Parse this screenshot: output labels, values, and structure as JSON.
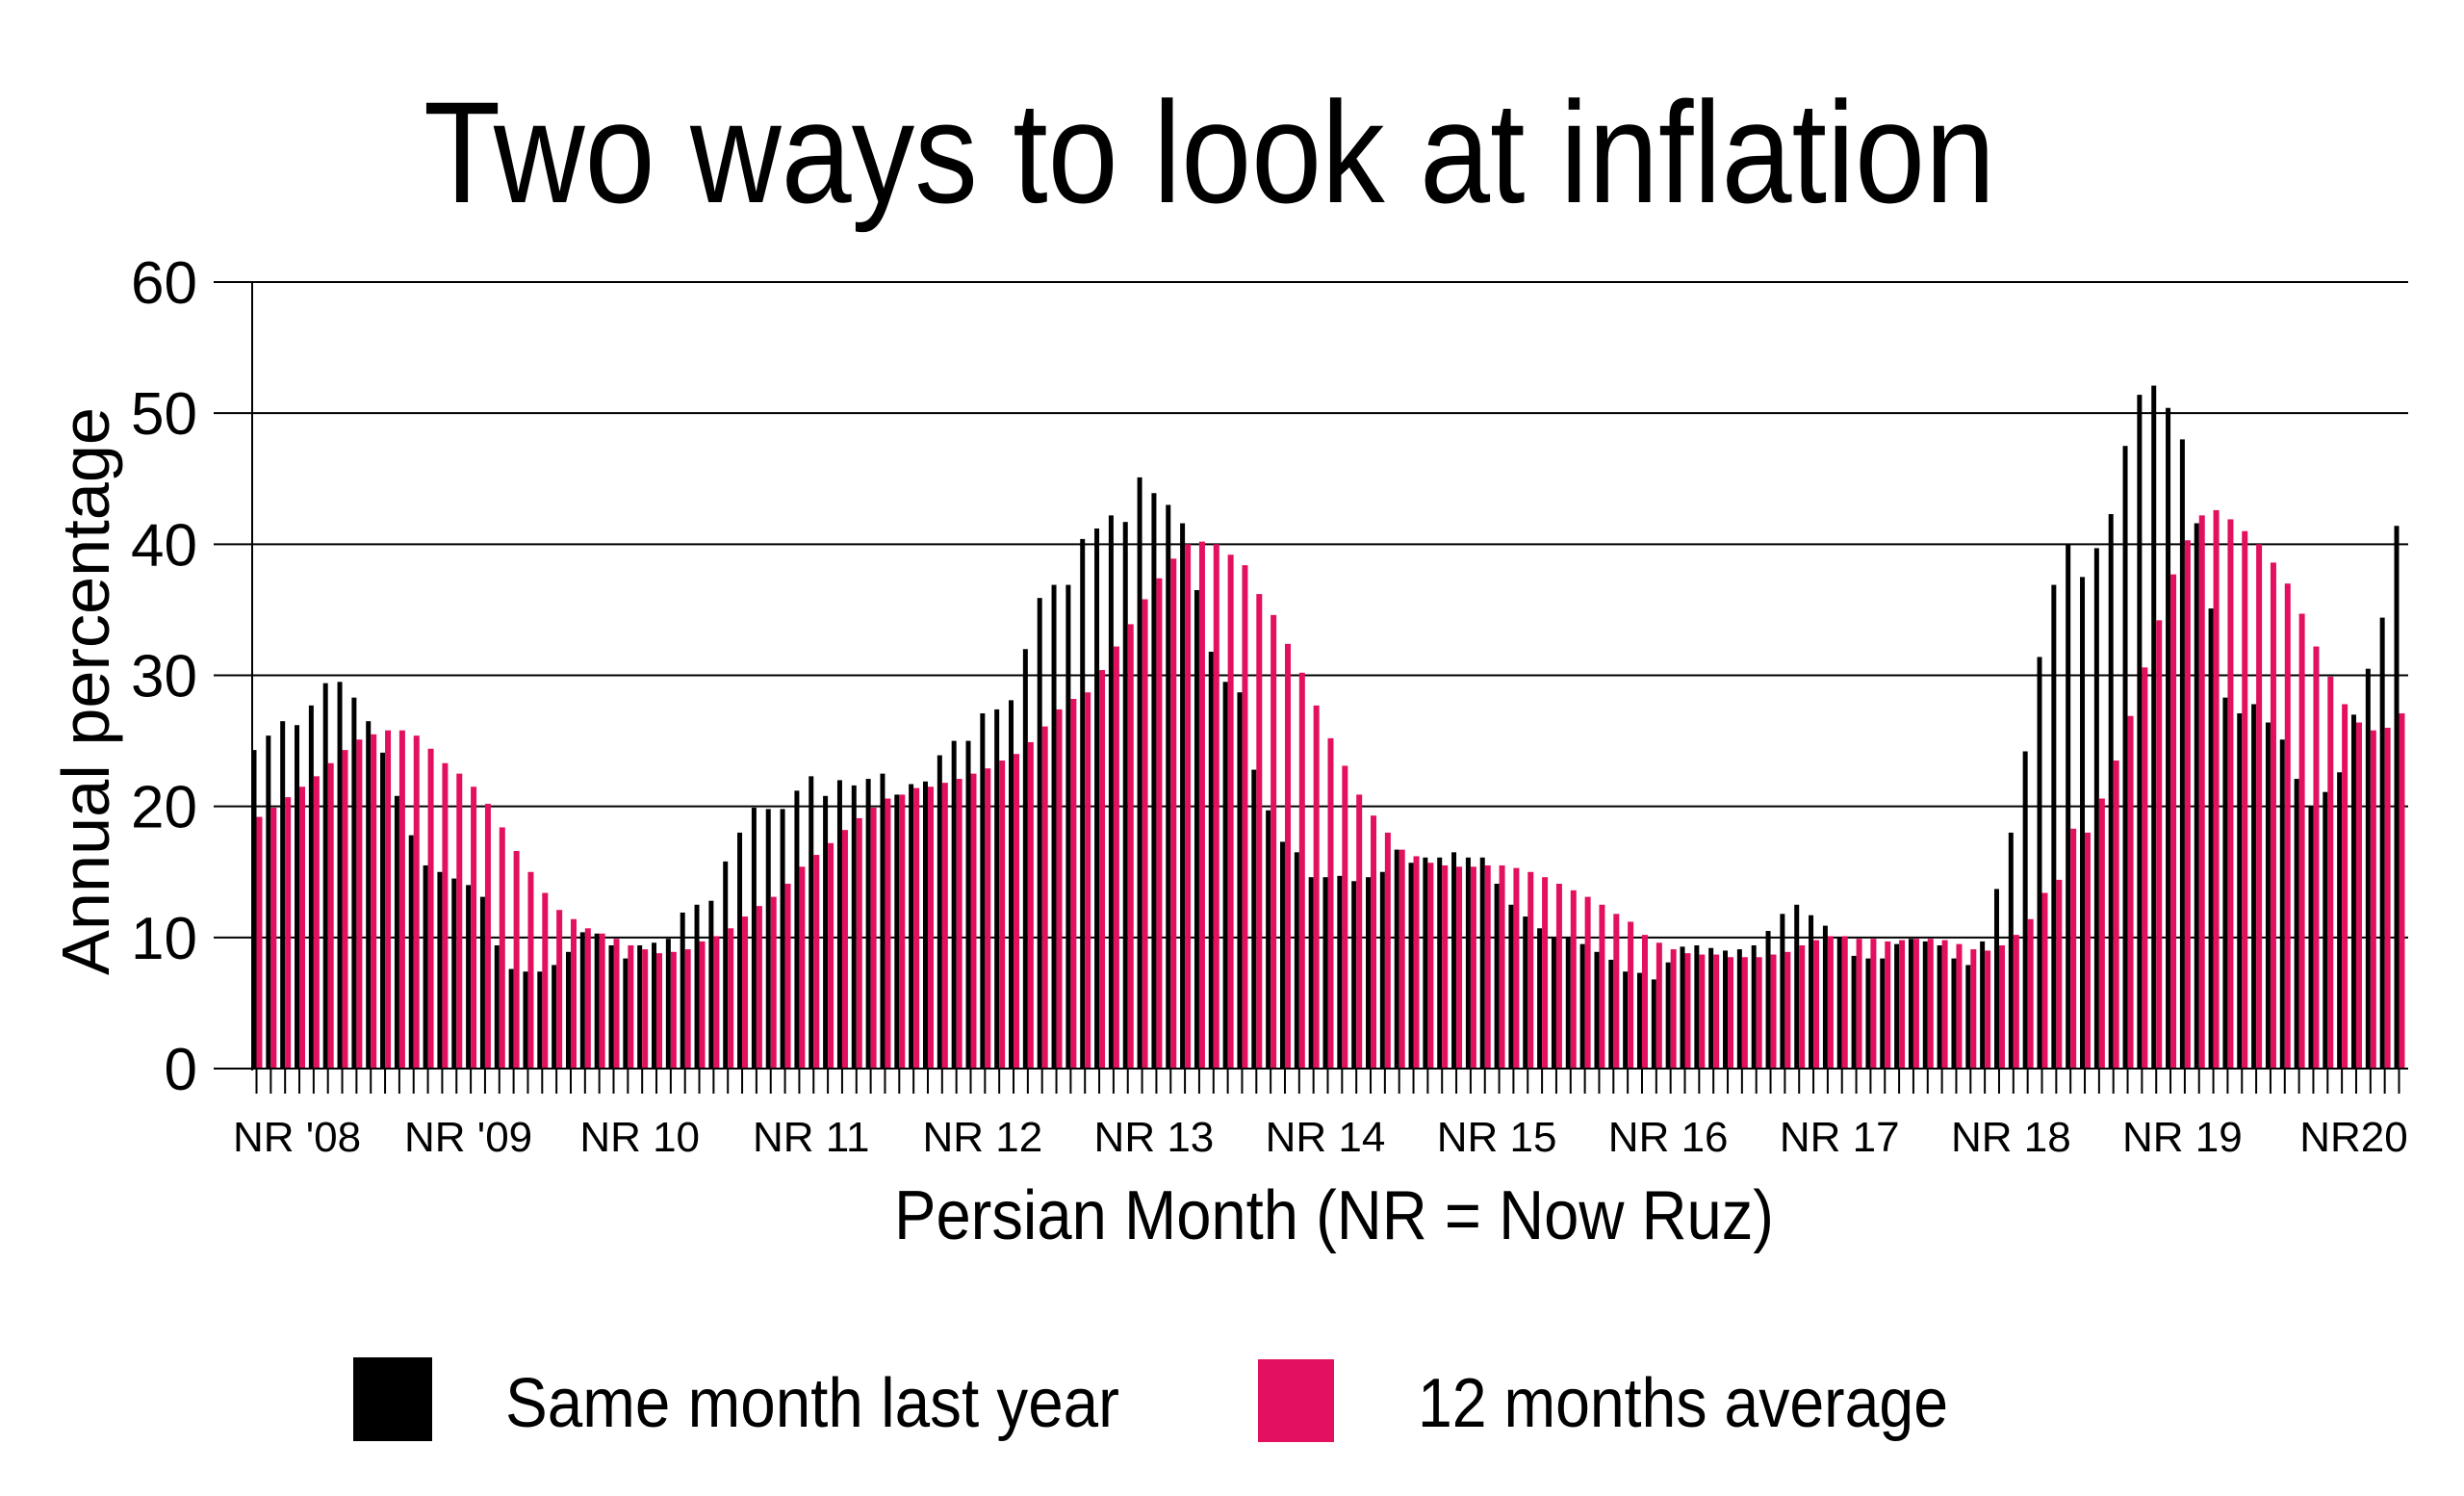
{
  "chart_data": {
    "type": "bar",
    "title": "Two ways to look at inflation",
    "xlabel": "Persian Month (NR = Now Ruz)",
    "ylabel": "Annual percentage",
    "ylim": [
      0,
      60
    ],
    "yticks": [
      "0",
      "10",
      "20",
      "30",
      "40",
      "50",
      "60"
    ],
    "grid": "horizontal",
    "legend_placement": "bottom",
    "x_tick_labels": [
      {
        "month": 1,
        "label": "NR '08"
      },
      {
        "month": 13,
        "label": "NR '09"
      },
      {
        "month": 25,
        "label": "NR 10"
      },
      {
        "month": 37,
        "label": "NR 11"
      },
      {
        "month": 49,
        "label": "NR 12"
      },
      {
        "month": 61,
        "label": "NR 13"
      },
      {
        "month": 73,
        "label": "NR 14"
      },
      {
        "month": 85,
        "label": "NR 15"
      },
      {
        "month": 97,
        "label": "NR 16"
      },
      {
        "month": 109,
        "label": "NR 17"
      },
      {
        "month": 121,
        "label": "NR 18"
      },
      {
        "month": 133,
        "label": "NR 19"
      },
      {
        "month": 145,
        "label": "NR20"
      }
    ],
    "series": [
      {
        "name": "Same month last year",
        "color": "#000000",
        "values": [
          24.3,
          25.4,
          26.5,
          26.2,
          27.7,
          29.4,
          29.5,
          28.3,
          26.5,
          24.1,
          20.8,
          17.8,
          15.5,
          15.0,
          14.5,
          14.0,
          13.1,
          9.4,
          7.6,
          7.4,
          7.4,
          7.9,
          8.9,
          10.4,
          10.3,
          9.4,
          8.4,
          9.4,
          9.6,
          9.9,
          11.9,
          12.5,
          12.8,
          15.8,
          18.0,
          19.9,
          19.8,
          19.8,
          21.2,
          22.3,
          20.8,
          22.0,
          21.6,
          22.1,
          22.5,
          20.9,
          21.7,
          21.9,
          23.9,
          25.0,
          25.0,
          27.1,
          27.4,
          28.1,
          32.0,
          35.9,
          36.9,
          36.9,
          40.4,
          41.2,
          42.2,
          41.7,
          45.1,
          43.9,
          43.0,
          41.6,
          36.5,
          31.8,
          29.5,
          28.7,
          22.8,
          19.7,
          17.3,
          16.5,
          14.6,
          14.6,
          14.7,
          14.3,
          14.6,
          15.0,
          16.7,
          15.7,
          16.1,
          16.1,
          16.5,
          16.1,
          16.1,
          14.1,
          12.5,
          11.6,
          10.7,
          10.0,
          10.0,
          9.5,
          8.9,
          8.3,
          7.4,
          7.3,
          6.8,
          8.1,
          9.3,
          9.4,
          9.2,
          9.0,
          9.1,
          9.4,
          10.5,
          11.8,
          12.5,
          11.7,
          10.9,
          10.0,
          8.6,
          8.4,
          8.4,
          9.5,
          9.9,
          9.7,
          9.4,
          8.4,
          7.9,
          9.7,
          13.7,
          18.0,
          24.2,
          31.4,
          36.9,
          40.0,
          37.5,
          39.7,
          42.3,
          47.5,
          51.4,
          52.1,
          50.4,
          48.0,
          41.6,
          35.1,
          28.3,
          27.1,
          27.8,
          26.4,
          25.1,
          22.1,
          20.0,
          21.1,
          22.6,
          27.0,
          30.5,
          34.4,
          41.4
        ]
      },
      {
        "name": "12 months average",
        "color": "#e2105e",
        "values": [
          19.2,
          19.9,
          20.7,
          21.5,
          22.3,
          23.3,
          24.3,
          25.1,
          25.5,
          25.8,
          25.8,
          25.4,
          24.4,
          23.3,
          22.5,
          21.5,
          20.2,
          18.4,
          16.6,
          15.0,
          13.4,
          12.1,
          11.4,
          10.7,
          10.3,
          9.9,
          9.4,
          9.1,
          8.8,
          8.9,
          9.1,
          9.7,
          10.1,
          10.7,
          11.6,
          12.4,
          13.1,
          14.1,
          15.4,
          16.3,
          17.2,
          18.2,
          19.1,
          19.9,
          20.6,
          20.9,
          21.4,
          21.5,
          21.8,
          22.1,
          22.5,
          22.9,
          23.5,
          24.0,
          24.9,
          26.1,
          27.4,
          28.2,
          28.7,
          30.4,
          32.2,
          33.9,
          35.8,
          37.4,
          38.9,
          40.0,
          40.2,
          40.0,
          39.2,
          38.4,
          36.2,
          34.6,
          32.4,
          30.2,
          27.7,
          25.2,
          23.1,
          20.9,
          19.3,
          18.0,
          16.7,
          16.2,
          15.7,
          15.5,
          15.4,
          15.4,
          15.5,
          15.5,
          15.3,
          15.0,
          14.6,
          14.1,
          13.6,
          13.1,
          12.5,
          11.8,
          11.2,
          10.2,
          9.6,
          9.1,
          8.8,
          8.7,
          8.7,
          8.5,
          8.5,
          8.5,
          8.7,
          8.9,
          9.4,
          9.8,
          10.1,
          10.1,
          9.9,
          9.9,
          9.7,
          9.8,
          9.9,
          9.9,
          9.8,
          9.5,
          9.1,
          9.0,
          9.4,
          10.2,
          11.4,
          13.4,
          14.4,
          18.3,
          18.0,
          20.6,
          23.5,
          26.9,
          30.6,
          34.2,
          37.7,
          40.3,
          42.2,
          42.6,
          41.9,
          41.0,
          40.0,
          38.6,
          37.0,
          34.7,
          32.2,
          29.9,
          27.8,
          26.4,
          25.8,
          26.0,
          27.1
        ]
      }
    ]
  }
}
